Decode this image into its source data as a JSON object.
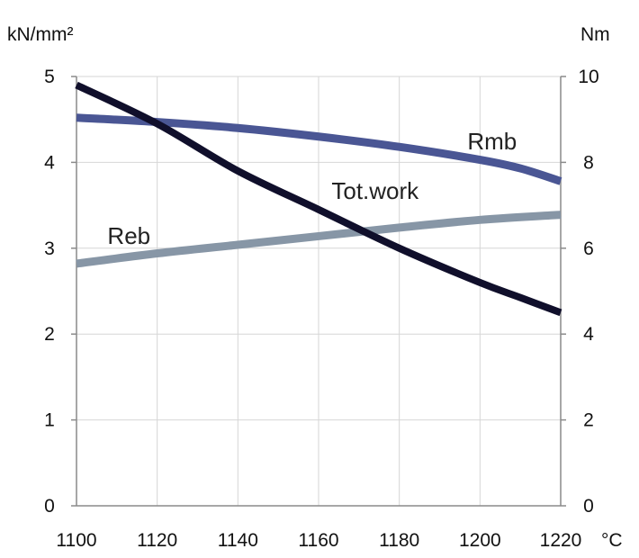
{
  "chart_data": {
    "type": "line",
    "left_unit": "kN/mm²",
    "right_unit": "Nm",
    "x_unit": "°C",
    "x_ticks": [
      1100,
      1120,
      1140,
      1160,
      1180,
      1200,
      1220
    ],
    "y_left_ticks": [
      0,
      1,
      2,
      3,
      4,
      5
    ],
    "y_right_ticks": [
      0,
      2,
      4,
      6,
      8,
      10
    ],
    "xlim": [
      1100,
      1220
    ],
    "ylim_left": [
      0,
      5
    ],
    "ylim_right": [
      0,
      10
    ],
    "grid": true,
    "series": [
      {
        "name": "Rmb",
        "axis": "left",
        "color": "#4a5694",
        "x": [
          1100,
          1120,
          1140,
          1160,
          1180,
          1200,
          1210,
          1220
        ],
        "y": [
          4.52,
          4.47,
          4.4,
          4.3,
          4.18,
          4.03,
          3.93,
          3.78
        ]
      },
      {
        "name": "Reb",
        "axis": "left",
        "color": "#8796a6",
        "x": [
          1100,
          1120,
          1140,
          1160,
          1180,
          1200,
          1220
        ],
        "y": [
          2.82,
          2.94,
          3.04,
          3.14,
          3.24,
          3.33,
          3.39
        ]
      },
      {
        "name": "Tot.work",
        "axis": "right",
        "color": "#100f2b",
        "x": [
          1100,
          1120,
          1140,
          1160,
          1180,
          1200,
          1210,
          1220
        ],
        "y": [
          9.8,
          8.9,
          7.8,
          6.9,
          6.0,
          5.2,
          4.85,
          4.5
        ]
      }
    ]
  }
}
